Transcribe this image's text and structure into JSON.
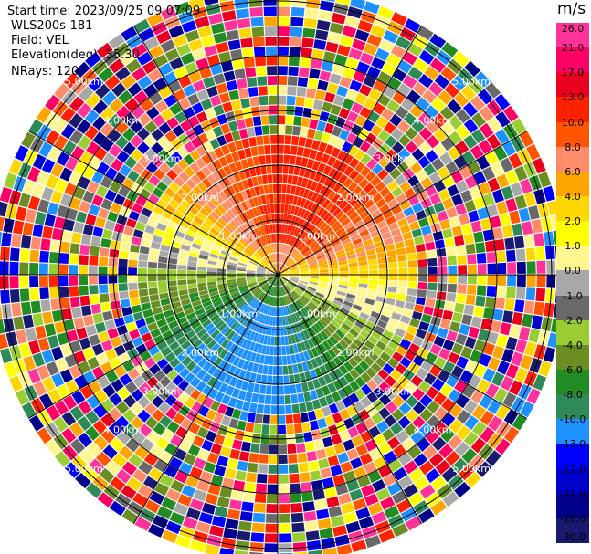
{
  "header": {
    "start_time": "Start time: 2023/09/25 09:07:09",
    "radar_name": "WLS200s-181",
    "field": "Field: VEL",
    "elevation": "Elevation(deg): 35.30",
    "nrays": "NRays: 120"
  },
  "colorbar": {
    "unit": "m/s",
    "ticks": [
      "26.0",
      "21.0",
      "17.0",
      "13.0",
      "10.0",
      "8.0",
      "6.0",
      "4.0",
      "2.0",
      "1.0",
      "0.0",
      "-1.0",
      "-2.0",
      "-4.0",
      "-6.0",
      "-8.0",
      "-10.0",
      "-13.0",
      "-17.0",
      "-21.0",
      "-26.0",
      "-30.0"
    ],
    "colors": [
      "#ff3399",
      "#ff0066",
      "#e8001e",
      "#ff2200",
      "#ff5500",
      "#ff8c69",
      "#ffa500",
      "#ffd700",
      "#ffff00",
      "#fff68f",
      "#a8a8a8",
      "#696969",
      "#9acd32",
      "#6b8e23",
      "#228b22",
      "#2e8b57",
      "#1e90ff",
      "#0000ff",
      "#0000cd",
      "#00008b",
      "#191970"
    ]
  },
  "chart_data": {
    "type": "ppi",
    "field": "VEL",
    "units": "m/s",
    "n_rays": 120,
    "elevation_deg": 35.3,
    "range_rings_km": [
      1.0,
      2.0,
      3.0,
      4.0,
      5.0
    ],
    "range_ring_labels": [
      "1.00km",
      "2.00km",
      "3.00km",
      "4.00km",
      "5.00km"
    ],
    "spokes_deg": [
      0,
      30,
      60,
      90,
      120,
      150,
      180,
      210,
      240,
      270,
      300,
      330
    ],
    "valid_data_max_range_km": 2.5,
    "velocity_pattern": {
      "north_sector": "positive 10 to 13 m/s",
      "northeast_sector": "positive 2 to 6 m/s",
      "east_west_band": "near 0 m/s",
      "south_sector": "negative -8 to -13 m/s"
    },
    "grid": true,
    "legend": "right"
  }
}
